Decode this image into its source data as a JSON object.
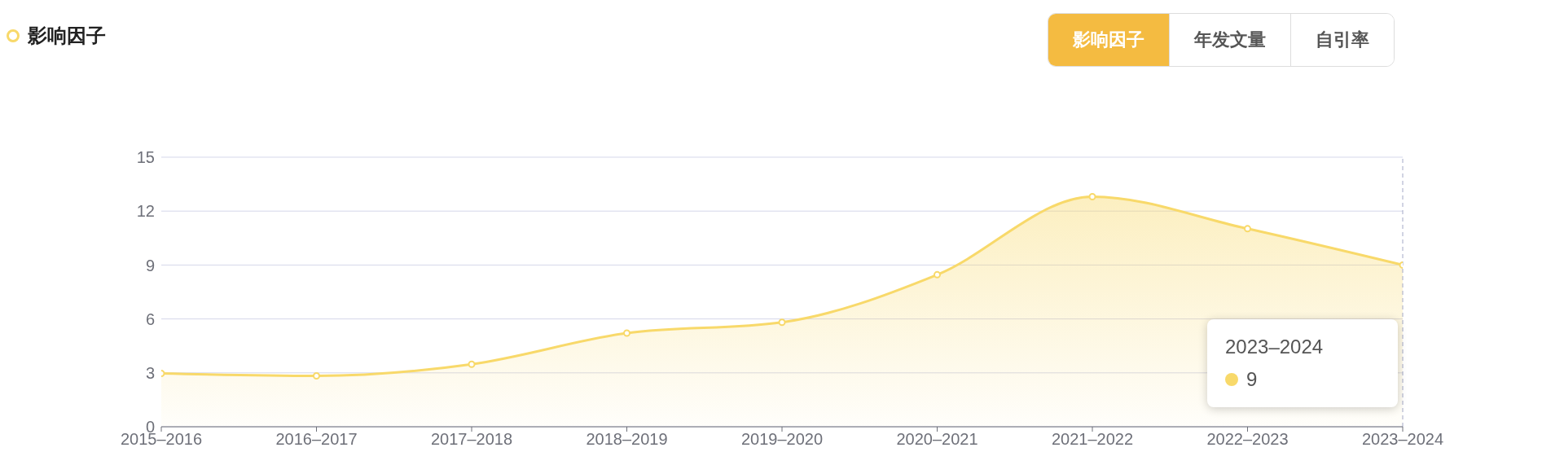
{
  "chart_data": {
    "type": "area",
    "title": "影响因子",
    "categories": [
      "2015–2016",
      "2016–2017",
      "2017–2018",
      "2018–2019",
      "2019–2020",
      "2020–2021",
      "2021–2022",
      "2022–2023",
      "2023–2024"
    ],
    "series": [
      {
        "color": "#f8d96a",
        "values": [
          2.97,
          2.83,
          3.48,
          5.21,
          5.81,
          8.46,
          12.8,
          11.02,
          9
        ]
      }
    ],
    "ylim": [
      0,
      15
    ],
    "yticks": [
      0,
      3,
      6,
      9,
      12,
      15
    ],
    "grid": "y",
    "marker": "circle",
    "legend": false,
    "ref_lines": [
      {
        "axis": "x",
        "value": "2023–2024",
        "color": "#a3a8c6",
        "line_style": "dashed"
      }
    ],
    "annotations": [
      "影响因子",
      "年发文量",
      "自引率",
      "2023–2024",
      "9"
    ]
  }
}
